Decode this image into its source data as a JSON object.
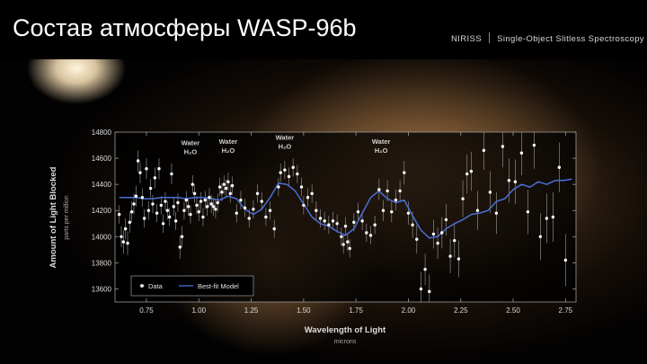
{
  "slide": {
    "title": "Состав атмосферы WASP-96b",
    "instrument": "NIRISS",
    "mode": "Single-Object Slitless Spectroscopy"
  },
  "chart_data": {
    "type": "scatter",
    "title": "",
    "xlabel": "Wavelength of Light",
    "xunit": "microns",
    "ylabel": "Amount of Light Blocked",
    "yunit": "parts per million",
    "xlim": [
      0.6,
      2.8
    ],
    "ylim": [
      13500,
      14800
    ],
    "xticks": [
      0.75,
      1.0,
      1.25,
      1.5,
      1.75,
      2.0,
      2.25,
      2.5,
      2.75
    ],
    "xtick_labels": [
      "0.75",
      "1.00",
      "1.25",
      "1.50",
      "1.75",
      "2.00",
      "2.25",
      "2.50",
      "2.75"
    ],
    "yticks": [
      13600,
      13800,
      14000,
      14200,
      14400,
      14600,
      14800
    ],
    "ytick_labels": [
      "13600",
      "13800",
      "14000",
      "14200",
      "14400",
      "14600",
      "14800"
    ],
    "grid": false,
    "legend": {
      "position": "bottom-left",
      "entries": [
        "Data",
        "Best-fit Model"
      ]
    },
    "colors": {
      "data": "#ffffff",
      "error_bar": "#8a8a8a",
      "model": "#4a6fd6",
      "axes": "#9a9a9a",
      "text": "#dcdcdc",
      "annotation": "#cfcfcf"
    },
    "annotations": [
      {
        "text": "Water",
        "sub": "H₂O",
        "x": 0.96,
        "y": 14700
      },
      {
        "text": "Water",
        "sub": "H₂O",
        "x": 1.14,
        "y": 14710
      },
      {
        "text": "Water",
        "sub": "H₂O",
        "x": 1.41,
        "y": 14740
      },
      {
        "text": "Water",
        "sub": "H₂O",
        "x": 1.87,
        "y": 14710
      }
    ],
    "series": [
      {
        "name": "Data",
        "type": "scatter",
        "points": [
          {
            "x": 0.62,
            "y": 14170,
            "e": 70
          },
          {
            "x": 0.63,
            "y": 14000,
            "e": 80
          },
          {
            "x": 0.64,
            "y": 13960,
            "e": 90
          },
          {
            "x": 0.65,
            "y": 14060,
            "e": 80
          },
          {
            "x": 0.66,
            "y": 13950,
            "e": 90
          },
          {
            "x": 0.67,
            "y": 14110,
            "e": 80
          },
          {
            "x": 0.68,
            "y": 14190,
            "e": 80
          },
          {
            "x": 0.69,
            "y": 14250,
            "e": 80
          },
          {
            "x": 0.7,
            "y": 14310,
            "e": 80
          },
          {
            "x": 0.71,
            "y": 14580,
            "e": 80
          },
          {
            "x": 0.72,
            "y": 14490,
            "e": 80
          },
          {
            "x": 0.73,
            "y": 14300,
            "e": 70
          },
          {
            "x": 0.74,
            "y": 14140,
            "e": 70
          },
          {
            "x": 0.75,
            "y": 14520,
            "e": 80
          },
          {
            "x": 0.76,
            "y": 14200,
            "e": 70
          },
          {
            "x": 0.77,
            "y": 14370,
            "e": 70
          },
          {
            "x": 0.78,
            "y": 14250,
            "e": 70
          },
          {
            "x": 0.79,
            "y": 14450,
            "e": 80
          },
          {
            "x": 0.8,
            "y": 14180,
            "e": 70
          },
          {
            "x": 0.81,
            "y": 14520,
            "e": 80
          },
          {
            "x": 0.82,
            "y": 14240,
            "e": 70
          },
          {
            "x": 0.83,
            "y": 14100,
            "e": 70
          },
          {
            "x": 0.84,
            "y": 14270,
            "e": 70
          },
          {
            "x": 0.85,
            "y": 14200,
            "e": 70
          },
          {
            "x": 0.86,
            "y": 14150,
            "e": 70
          },
          {
            "x": 0.87,
            "y": 14480,
            "e": 80
          },
          {
            "x": 0.88,
            "y": 14230,
            "e": 70
          },
          {
            "x": 0.89,
            "y": 14120,
            "e": 70
          },
          {
            "x": 0.9,
            "y": 14260,
            "e": 70
          },
          {
            "x": 0.91,
            "y": 13920,
            "e": 90
          },
          {
            "x": 0.92,
            "y": 14000,
            "e": 80
          },
          {
            "x": 0.93,
            "y": 14200,
            "e": 70
          },
          {
            "x": 0.94,
            "y": 14280,
            "e": 70
          },
          {
            "x": 0.95,
            "y": 14230,
            "e": 70
          },
          {
            "x": 0.96,
            "y": 14170,
            "e": 70
          },
          {
            "x": 0.97,
            "y": 14400,
            "e": 70
          },
          {
            "x": 0.98,
            "y": 14330,
            "e": 70
          },
          {
            "x": 0.99,
            "y": 14240,
            "e": 70
          },
          {
            "x": 1.0,
            "y": 14190,
            "e": 70
          },
          {
            "x": 1.01,
            "y": 14270,
            "e": 70
          },
          {
            "x": 1.02,
            "y": 14150,
            "e": 70
          },
          {
            "x": 1.03,
            "y": 14280,
            "e": 70
          },
          {
            "x": 1.04,
            "y": 14230,
            "e": 70
          },
          {
            "x": 1.05,
            "y": 14300,
            "e": 70
          },
          {
            "x": 1.06,
            "y": 14250,
            "e": 70
          },
          {
            "x": 1.07,
            "y": 14230,
            "e": 70
          },
          {
            "x": 1.08,
            "y": 14210,
            "e": 70
          },
          {
            "x": 1.09,
            "y": 14260,
            "e": 70
          },
          {
            "x": 1.1,
            "y": 14380,
            "e": 70
          },
          {
            "x": 1.11,
            "y": 14340,
            "e": 70
          },
          {
            "x": 1.12,
            "y": 14400,
            "e": 70
          },
          {
            "x": 1.13,
            "y": 14370,
            "e": 70
          },
          {
            "x": 1.14,
            "y": 14420,
            "e": 70
          },
          {
            "x": 1.15,
            "y": 14330,
            "e": 70
          },
          {
            "x": 1.16,
            "y": 14390,
            "e": 70
          },
          {
            "x": 1.18,
            "y": 14180,
            "e": 70
          },
          {
            "x": 1.2,
            "y": 14280,
            "e": 70
          },
          {
            "x": 1.22,
            "y": 14220,
            "e": 70
          },
          {
            "x": 1.24,
            "y": 14140,
            "e": 70
          },
          {
            "x": 1.26,
            "y": 14210,
            "e": 70
          },
          {
            "x": 1.28,
            "y": 14330,
            "e": 70
          },
          {
            "x": 1.3,
            "y": 14270,
            "e": 70
          },
          {
            "x": 1.32,
            "y": 14150,
            "e": 70
          },
          {
            "x": 1.34,
            "y": 14200,
            "e": 70
          },
          {
            "x": 1.36,
            "y": 14060,
            "e": 70
          },
          {
            "x": 1.38,
            "y": 14380,
            "e": 70
          },
          {
            "x": 1.39,
            "y": 14490,
            "e": 70
          },
          {
            "x": 1.41,
            "y": 14510,
            "e": 70
          },
          {
            "x": 1.43,
            "y": 14460,
            "e": 70
          },
          {
            "x": 1.45,
            "y": 14530,
            "e": 70
          },
          {
            "x": 1.47,
            "y": 14480,
            "e": 70
          },
          {
            "x": 1.49,
            "y": 14380,
            "e": 70
          },
          {
            "x": 1.5,
            "y": 14240,
            "e": 70
          },
          {
            "x": 1.52,
            "y": 14300,
            "e": 70
          },
          {
            "x": 1.54,
            "y": 14330,
            "e": 70
          },
          {
            "x": 1.56,
            "y": 14200,
            "e": 70
          },
          {
            "x": 1.58,
            "y": 14140,
            "e": 70
          },
          {
            "x": 1.6,
            "y": 14120,
            "e": 70
          },
          {
            "x": 1.62,
            "y": 14090,
            "e": 70
          },
          {
            "x": 1.64,
            "y": 14120,
            "e": 70
          },
          {
            "x": 1.66,
            "y": 14100,
            "e": 70
          },
          {
            "x": 1.68,
            "y": 14000,
            "e": 70
          },
          {
            "x": 1.69,
            "y": 13940,
            "e": 70
          },
          {
            "x": 1.7,
            "y": 14080,
            "e": 70
          },
          {
            "x": 1.71,
            "y": 13960,
            "e": 70
          },
          {
            "x": 1.72,
            "y": 13910,
            "e": 70
          },
          {
            "x": 1.74,
            "y": 14110,
            "e": 70
          },
          {
            "x": 1.76,
            "y": 14190,
            "e": 70
          },
          {
            "x": 1.78,
            "y": 14120,
            "e": 70
          },
          {
            "x": 1.8,
            "y": 14030,
            "e": 70
          },
          {
            "x": 1.82,
            "y": 14010,
            "e": 70
          },
          {
            "x": 1.84,
            "y": 14090,
            "e": 70
          },
          {
            "x": 1.86,
            "y": 14360,
            "e": 80
          },
          {
            "x": 1.88,
            "y": 14200,
            "e": 80
          },
          {
            "x": 1.9,
            "y": 14350,
            "e": 80
          },
          {
            "x": 1.92,
            "y": 14190,
            "e": 80
          },
          {
            "x": 1.94,
            "y": 14280,
            "e": 80
          },
          {
            "x": 1.96,
            "y": 14350,
            "e": 80
          },
          {
            "x": 1.98,
            "y": 14490,
            "e": 90
          },
          {
            "x": 2.0,
            "y": 14180,
            "e": 90
          },
          {
            "x": 2.02,
            "y": 14090,
            "e": 100
          },
          {
            "x": 2.04,
            "y": 13980,
            "e": 110
          },
          {
            "x": 2.06,
            "y": 13600,
            "e": 130
          },
          {
            "x": 2.08,
            "y": 13750,
            "e": 120
          },
          {
            "x": 2.1,
            "y": 13580,
            "e": 130
          },
          {
            "x": 2.12,
            "y": 14020,
            "e": 110
          },
          {
            "x": 2.14,
            "y": 13950,
            "e": 120
          },
          {
            "x": 2.16,
            "y": 14030,
            "e": 120
          },
          {
            "x": 2.18,
            "y": 14130,
            "e": 120
          },
          {
            "x": 2.2,
            "y": 13850,
            "e": 130
          },
          {
            "x": 2.22,
            "y": 13970,
            "e": 130
          },
          {
            "x": 2.24,
            "y": 13830,
            "e": 140
          },
          {
            "x": 2.26,
            "y": 14290,
            "e": 140
          },
          {
            "x": 2.28,
            "y": 14480,
            "e": 150
          },
          {
            "x": 2.3,
            "y": 14500,
            "e": 150
          },
          {
            "x": 2.33,
            "y": 14200,
            "e": 150
          },
          {
            "x": 2.36,
            "y": 14660,
            "e": 150
          },
          {
            "x": 2.39,
            "y": 14340,
            "e": 160
          },
          {
            "x": 2.42,
            "y": 14180,
            "e": 160
          },
          {
            "x": 2.45,
            "y": 14690,
            "e": 160
          },
          {
            "x": 2.48,
            "y": 14430,
            "e": 170
          },
          {
            "x": 2.51,
            "y": 14420,
            "e": 170
          },
          {
            "x": 2.54,
            "y": 14640,
            "e": 170
          },
          {
            "x": 2.57,
            "y": 14190,
            "e": 170
          },
          {
            "x": 2.6,
            "y": 14700,
            "e": 180
          },
          {
            "x": 2.63,
            "y": 14000,
            "e": 180
          },
          {
            "x": 2.66,
            "y": 14140,
            "e": 190
          },
          {
            "x": 2.69,
            "y": 14150,
            "e": 190
          },
          {
            "x": 2.72,
            "y": 14530,
            "e": 190
          },
          {
            "x": 2.75,
            "y": 13820,
            "e": 200
          }
        ]
      },
      {
        "name": "Best-fit Model",
        "type": "line",
        "x": [
          0.62,
          0.66,
          0.7,
          0.74,
          0.78,
          0.82,
          0.86,
          0.9,
          0.94,
          0.98,
          1.02,
          1.06,
          1.1,
          1.14,
          1.18,
          1.22,
          1.26,
          1.3,
          1.34,
          1.38,
          1.42,
          1.46,
          1.5,
          1.54,
          1.58,
          1.62,
          1.66,
          1.7,
          1.74,
          1.78,
          1.82,
          1.86,
          1.9,
          1.94,
          1.98,
          2.02,
          2.06,
          2.1,
          2.14,
          2.18,
          2.22,
          2.26,
          2.3,
          2.34,
          2.38,
          2.42,
          2.46,
          2.5,
          2.54,
          2.58,
          2.62,
          2.66,
          2.7,
          2.74,
          2.78
        ],
        "y": [
          14300,
          14300,
          14300,
          14290,
          14290,
          14300,
          14300,
          14300,
          14290,
          14300,
          14300,
          14290,
          14280,
          14310,
          14290,
          14210,
          14170,
          14210,
          14300,
          14410,
          14400,
          14350,
          14250,
          14150,
          14100,
          14080,
          14040,
          14010,
          14060,
          14180,
          14300,
          14350,
          14290,
          14260,
          14280,
          14160,
          14050,
          13990,
          14000,
          14060,
          14100,
          14130,
          14170,
          14180,
          14200,
          14270,
          14290,
          14360,
          14400,
          14380,
          14420,
          14400,
          14430,
          14430,
          14440
        ]
      }
    ]
  }
}
